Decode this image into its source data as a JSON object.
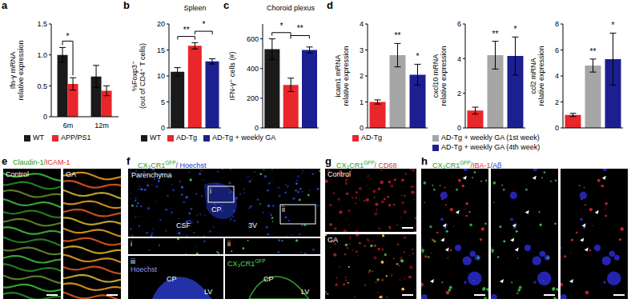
{
  "chart_data": [
    {
      "letter": "a",
      "type": "bar",
      "ylabel": [
        "Ifn-γ mRNA",
        "relative expression"
      ],
      "categories": [
        "6m",
        "12m"
      ],
      "series": [
        {
          "name": "WT",
          "color": "#1a1a1a",
          "values": [
            1.0,
            0.65
          ],
          "errors": [
            0.12,
            0.18
          ]
        },
        {
          "name": "APP/PS1",
          "color": "#e8262b",
          "values": [
            0.53,
            0.42
          ],
          "errors": [
            0.1,
            0.08
          ]
        }
      ],
      "ylim": [
        0,
        1.5
      ],
      "yticks": [
        0,
        0.5,
        {
          "value": 1,
          "label": "1.0"
        },
        1.5
      ],
      "significance": [
        {
          "category": 0,
          "series": [
            0,
            1
          ],
          "text": "*"
        }
      ],
      "legend": "bottom"
    },
    {
      "letter": "b",
      "type": "bar",
      "title": "Spleen",
      "ylabel": [
        "%Foxp3⁺",
        "(out of CD4⁺ T cells)"
      ],
      "categories": [
        "WT",
        "AD-Tg",
        "AD-Tg + weekly GA"
      ],
      "values": [
        10.8,
        15.8,
        12.8
      ],
      "errors": [
        0.8,
        0.6,
        0.5
      ],
      "colors": [
        "#1a1a1a",
        "#e8262b",
        "#1c1f8f"
      ],
      "ylim": [
        0,
        20
      ],
      "yticks": [
        0,
        5,
        10,
        15,
        20
      ],
      "tick_labels": "y",
      "significance": [
        {
          "between": [
            0,
            1
          ],
          "text": "**"
        },
        {
          "between": [
            1,
            2
          ],
          "text": "*"
        }
      ],
      "legend": "bottom"
    },
    {
      "letter": "c",
      "type": "bar",
      "title": "Choroid plexus",
      "ylabel": [
        "IFN-γ⁺ cells (#)"
      ],
      "categories": [
        null,
        null,
        null
      ],
      "values": [
        530,
        290,
        525
      ],
      "errors": [
        70,
        45,
        20
      ],
      "colors": [
        "#1a1a1a",
        "#e8262b",
        "#1c1f8f"
      ],
      "ylim": [
        0,
        700
      ],
      "yticks": [
        0,
        200,
        400,
        600
      ],
      "tick_labels": "y",
      "significance": [
        {
          "between": [
            0,
            1
          ],
          "text": "*"
        },
        {
          "between": [
            1,
            2
          ],
          "text": "**"
        }
      ]
    },
    {
      "letter": "d",
      "type": "bar",
      "ylabel": [
        "icam1 mRNA",
        "relative expression"
      ],
      "categories": [
        "AD-Tg",
        "AD-Tg + weekly GA (1st week)",
        "AD-Tg + weekly GA (4th week)"
      ],
      "values": [
        1.0,
        2.8,
        2.05
      ],
      "errors": [
        0.08,
        0.45,
        0.4
      ],
      "colors": [
        "#e8262b",
        "#a6a6a6",
        "#1c1f8f"
      ],
      "ylim": [
        0,
        4
      ],
      "yticks": [
        0,
        1,
        2,
        3,
        4
      ],
      "tick_labels": "y",
      "significance": [
        {
          "category": 1,
          "text": "**"
        },
        {
          "category": 2,
          "text": "*"
        }
      ],
      "legend": "bottom"
    },
    {
      "type": "bar",
      "ylabel": [
        "cxcl10 mRNA",
        "relative expression"
      ],
      "categories": [
        null,
        null,
        null
      ],
      "values": [
        1.0,
        4.2,
        4.15
      ],
      "errors": [
        0.2,
        0.8,
        1.1
      ],
      "colors": [
        "#e8262b",
        "#a6a6a6",
        "#1c1f8f"
      ],
      "ylim": [
        0,
        6
      ],
      "yticks": [
        0,
        2,
        4,
        6
      ],
      "tick_labels": "y",
      "significance": [
        {
          "category": 1,
          "text": "**"
        },
        {
          "category": 2,
          "text": "*"
        }
      ]
    },
    {
      "type": "bar",
      "ylabel": [
        "ccl2 mRNA",
        "relative expression"
      ],
      "categories": [
        null,
        null,
        null
      ],
      "values": [
        1.0,
        4.8,
        5.3
      ],
      "errors": [
        0.12,
        0.5,
        2.0
      ],
      "colors": [
        "#e8262b",
        "#a6a6a6",
        "#1c1f8f"
      ],
      "ylim": [
        0,
        8
      ],
      "yticks": [
        0,
        2,
        4,
        6,
        8
      ],
      "tick_labels": "y",
      "significance": [
        {
          "category": 1,
          "text": "**"
        },
        {
          "category": 2,
          "text": "*"
        }
      ]
    }
  ],
  "images": [
    {
      "letter": "e",
      "label": [
        {
          "text": "Claudin-1/",
          "color": "#22a022"
        },
        {
          "text": "ICAM-1",
          "color": "#e8262b"
        }
      ],
      "panels": [
        "Control",
        "GA"
      ]
    },
    {
      "letter": "f",
      "label": [
        {
          "text": "CX₃CR1",
          "color": "#22a022"
        },
        {
          "text": "GFP",
          "color": "#22a022",
          "sup": true
        },
        {
          "text": "/ Hoechst",
          "color": "#2233cc"
        }
      ],
      "main": [
        "Parenchyma",
        "CSF",
        "CP",
        "3V"
      ],
      "boxes": [
        "i",
        "ii"
      ],
      "insets": [
        "i",
        "ii"
      ],
      "lower": [
        {
          "tag": "iii",
          "label": [
            {
              "text": "Hoechst",
              "color": "#8f9bff"
            }
          ],
          "texts": [
            "CP",
            "LV"
          ]
        },
        {
          "label": [
            {
              "text": "CX₃CR1",
              "color": "#5fd85f"
            },
            {
              "text": "GFP",
              "color": "#5fd85f",
              "sup": true
            }
          ],
          "texts": [
            "CP",
            "LV"
          ]
        }
      ]
    },
    {
      "letter": "g",
      "label": [
        {
          "text": "CX₃CR1",
          "color": "#22a022"
        },
        {
          "text": "GFP",
          "color": "#22a022",
          "sup": true
        },
        {
          "text": "/ CD68",
          "color": "#e8262b"
        }
      ],
      "panels": [
        "Control",
        "GA"
      ]
    },
    {
      "letter": "h",
      "label": [
        {
          "text": "CX₃CR1",
          "color": "#22a022"
        },
        {
          "text": "GFP",
          "color": "#22a022",
          "sup": true
        },
        {
          "text": "/IBA-1",
          "color": "#e8262b"
        },
        {
          "text": "/Aβ",
          "color": "#2233cc"
        }
      ]
    }
  ]
}
